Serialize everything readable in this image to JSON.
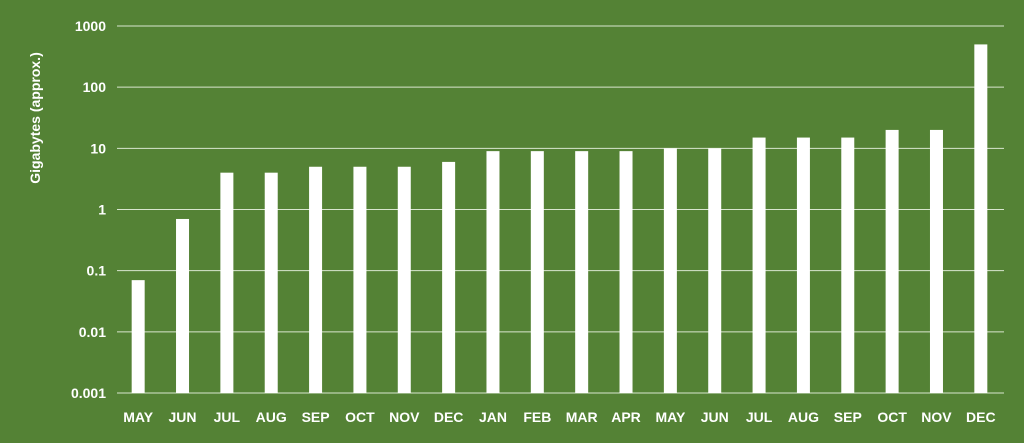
{
  "colors": {
    "background": "#548235",
    "bar": "#ffffff",
    "gridline": "#d9e6cf",
    "text": "#ffffff"
  },
  "chart_data": {
    "type": "bar",
    "title": "",
    "xlabel": "",
    "ylabel": "Gigabytes (approx.)",
    "yscale": "log",
    "ylim": [
      0.001,
      1000
    ],
    "yticks": [
      0.001,
      0.01,
      0.1,
      1,
      10,
      100,
      1000
    ],
    "ytick_labels": [
      "0.001",
      "0.01",
      "0.1",
      "1",
      "10",
      "100",
      "1000"
    ],
    "grid": true,
    "legend": "none",
    "categories": [
      "MAY",
      "JUN",
      "JUL",
      "AUG",
      "SEP",
      "OCT",
      "NOV",
      "DEC",
      "JAN",
      "FEB",
      "MAR",
      "APR",
      "MAY",
      "JUN",
      "JUL",
      "AUG",
      "SEP",
      "OCT",
      "NOV",
      "DEC"
    ],
    "values": [
      0.07,
      0.7,
      4,
      4,
      5,
      5,
      5,
      6,
      9,
      9,
      9,
      9,
      10,
      10,
      15,
      15,
      15,
      20,
      20,
      500
    ]
  }
}
